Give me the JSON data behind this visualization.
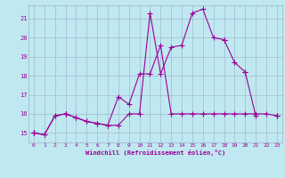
{
  "xlabel": "Windchill (Refroidissement éolien,°C)",
  "xlim": [
    -0.5,
    23.5
  ],
  "ylim": [
    14.5,
    21.7
  ],
  "yticks": [
    15,
    16,
    17,
    18,
    19,
    20,
    21
  ],
  "xticks": [
    0,
    1,
    2,
    3,
    4,
    5,
    6,
    7,
    8,
    9,
    10,
    11,
    12,
    13,
    14,
    15,
    16,
    17,
    18,
    19,
    20,
    21,
    22,
    23
  ],
  "bg_color": "#c0e8f0",
  "grid_color": "#9ab0c8",
  "line_color": "#990099",
  "line_width": 0.8,
  "marker": "+",
  "marker_size": 4,
  "marker_ew": 0.8,
  "series": [
    [
      15.0,
      14.9,
      15.9,
      16.0,
      15.8,
      15.6,
      15.5,
      15.4,
      15.4,
      16.0,
      16.0,
      21.3,
      18.1,
      19.5,
      19.6,
      21.3,
      21.5,
      20.0,
      19.9,
      18.7,
      18.2,
      15.9,
      null,
      null
    ],
    [
      15.0,
      14.9,
      15.9,
      16.0,
      15.8,
      15.6,
      15.5,
      15.4,
      16.9,
      16.5,
      18.1,
      18.1,
      19.6,
      16.0,
      16.0,
      16.0,
      16.0,
      16.0,
      16.0,
      16.0,
      16.0,
      16.0,
      16.0,
      15.9
    ],
    [
      15.0,
      null,
      null,
      16.0,
      null,
      null,
      null,
      null,
      null,
      null,
      null,
      null,
      null,
      null,
      null,
      null,
      null,
      null,
      19.9,
      null,
      null,
      null,
      null,
      15.9
    ],
    [
      15.0,
      null,
      null,
      16.0,
      null,
      null,
      null,
      null,
      null,
      null,
      null,
      null,
      null,
      null,
      null,
      null,
      null,
      null,
      null,
      null,
      18.2,
      null,
      null,
      15.9
    ]
  ]
}
